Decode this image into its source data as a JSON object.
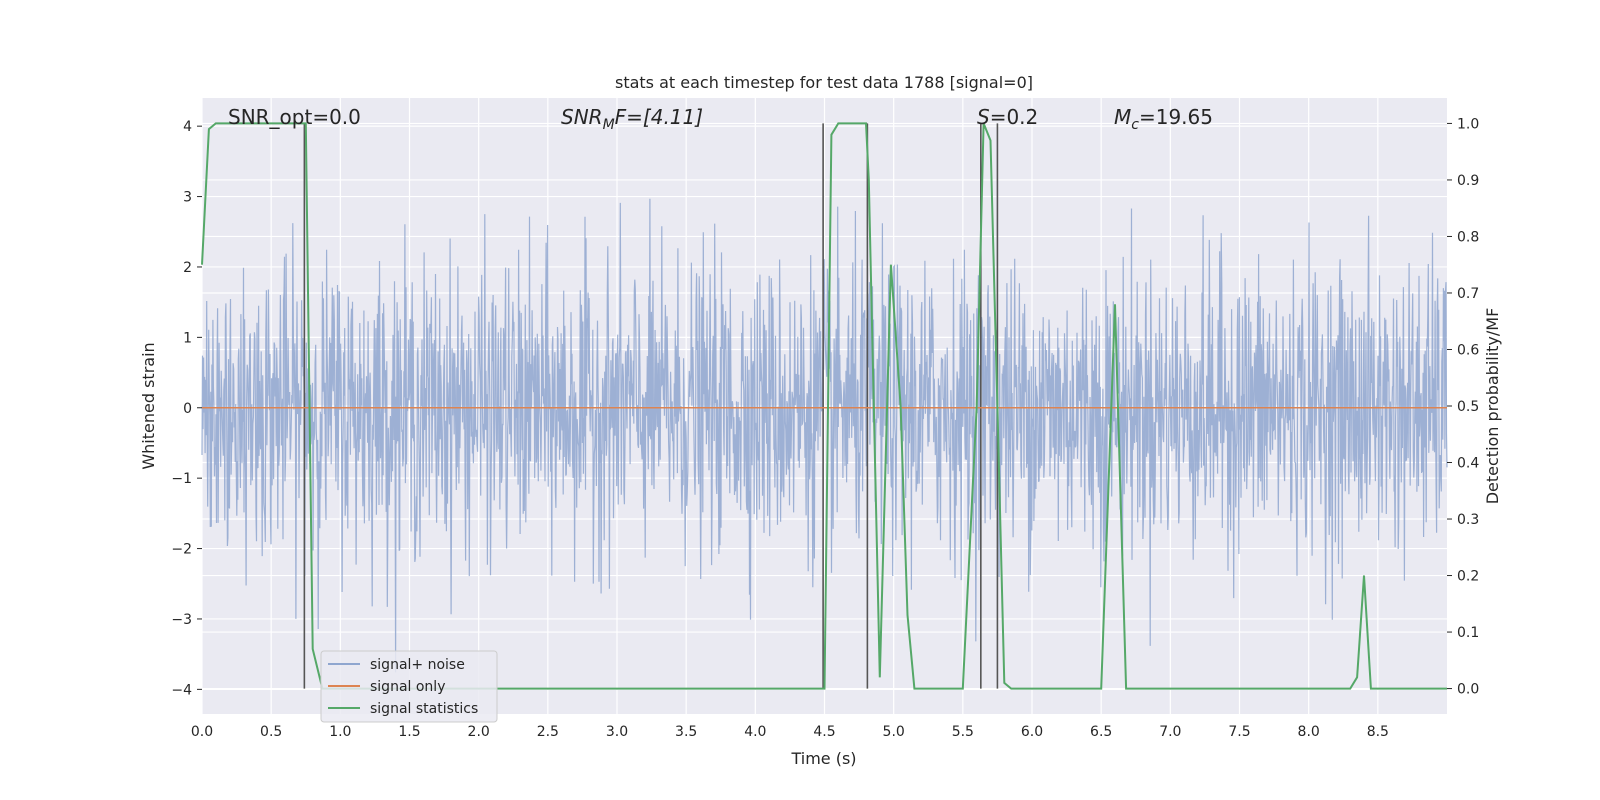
{
  "chart_data": {
    "type": "line",
    "title": "stats at each timestep for test data 1788 [signal=0]",
    "xlabel": "Time (s)",
    "ylabel": "Whitened strain",
    "y2label": "Detection probability/MF",
    "xlim": [
      0.0,
      9.0
    ],
    "ylim": [
      -4.35,
      4.4
    ],
    "y2lim": [
      -0.045,
      1.045
    ],
    "grid": true,
    "legend_position": "lower-left",
    "x_ticks": [
      "0.0",
      "0.5",
      "1.0",
      "1.5",
      "2.0",
      "2.5",
      "3.0",
      "3.5",
      "4.0",
      "4.5",
      "5.0",
      "5.5",
      "6.0",
      "6.5",
      "7.0",
      "7.5",
      "8.0",
      "8.5"
    ],
    "y_ticks": [
      "4",
      "3",
      "2",
      "1",
      "0",
      "−1",
      "−2",
      "−3",
      "−4"
    ],
    "y2_ticks": [
      "1.0",
      "0.9",
      "0.8",
      "0.7",
      "0.6",
      "0.5",
      "0.4",
      "0.3",
      "0.2",
      "0.1",
      "0.0"
    ],
    "annotations": {
      "snr_opt": "SNR_opt=0.0",
      "snr_mf_base": "SNR",
      "snr_mf_sub": "M",
      "snr_mf_rest": "F=[4.11]",
      "s_base": "S",
      "s_rest": "=0.2",
      "mc_base": "M",
      "mc_sub": "c",
      "mc_rest": "=19.65"
    },
    "series": [
      {
        "name": "signal+ noise",
        "color": "#8fa6cf",
        "note": "whitened strain noise, amplitude roughly within -4 to 4"
      },
      {
        "name": "signal only",
        "color": "#dd8452",
        "x": [
          0.0,
          9.0
        ],
        "y": [
          0.0,
          0.0
        ]
      },
      {
        "name": "signal statistics",
        "color": "#55a868",
        "x": [
          0.0,
          0.05,
          0.1,
          0.15,
          0.5,
          0.7,
          0.75,
          0.8,
          0.87,
          0.95,
          1.5,
          2.5,
          3.5,
          4.0,
          4.5,
          4.55,
          4.6,
          4.7,
          4.8,
          4.82,
          4.9,
          4.98,
          5.05,
          5.1,
          5.15,
          5.2,
          5.5,
          5.6,
          5.65,
          5.7,
          5.75,
          5.8,
          5.85,
          5.9,
          6.0,
          6.5,
          6.6,
          6.68,
          6.75,
          7.5,
          8.0,
          8.3,
          8.35,
          8.4,
          8.45,
          8.5,
          9.0
        ],
        "y": [
          0.75,
          0.99,
          1.0,
          1.0,
          1.0,
          1.0,
          1.0,
          0.07,
          0.0,
          0.0,
          0.0,
          0.0,
          0.0,
          0.0,
          0.0,
          0.98,
          1.0,
          1.0,
          1.0,
          0.9,
          0.02,
          0.75,
          0.5,
          0.13,
          0.0,
          0.0,
          0.0,
          0.5,
          1.0,
          0.97,
          0.5,
          0.01,
          0.0,
          0.0,
          0.0,
          0.0,
          0.68,
          0.0,
          0.0,
          0.0,
          0.0,
          0.0,
          0.02,
          0.2,
          0.0,
          0.0,
          0.0
        ]
      }
    ],
    "vertical_markers": [
      0.74,
      4.49,
      4.81,
      5.63,
      5.75
    ]
  }
}
